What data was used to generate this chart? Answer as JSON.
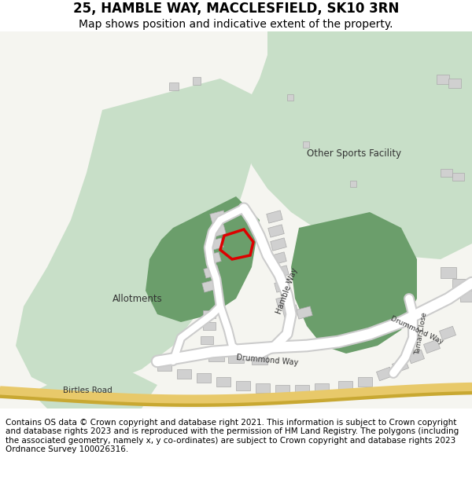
{
  "title": "25, HAMBLE WAY, MACCLESFIELD, SK10 3RN",
  "subtitle": "Map shows position and indicative extent of the property.",
  "footer": "Contains OS data © Crown copyright and database right 2021. This information is subject to Crown copyright and database rights 2023 and is reproduced with the permission of HM Land Registry. The polygons (including the associated geometry, namely x, y co-ordinates) are subject to Crown copyright and database rights 2023 Ordnance Survey 100026316.",
  "map_bg": "#f5f5f0",
  "green_light": "#c8dfc8",
  "green_mid": "#6b9e6b",
  "green_dark": "#4a7a4a",
  "road_color": "#ffffff",
  "road_stroke": "#cccccc",
  "building_color": "#d8d8d8",
  "building_stroke": "#bbbbbb",
  "road_yellow": "#e8c96a",
  "red_plot": "#dd0000",
  "title_fontsize": 12,
  "subtitle_fontsize": 10,
  "footer_fontsize": 7.5
}
